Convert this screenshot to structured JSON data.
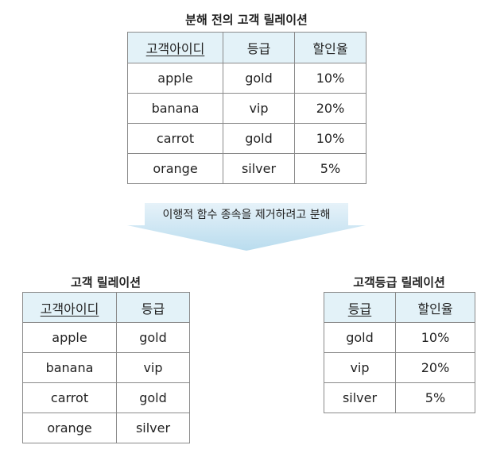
{
  "top": {
    "title": "분해 전의 고객 릴레이션",
    "headers": [
      "고객아이디",
      "등급",
      "할인율"
    ],
    "rows": [
      [
        "apple",
        "gold",
        "10%"
      ],
      [
        "banana",
        "vip",
        "20%"
      ],
      [
        "carrot",
        "gold",
        "10%"
      ],
      [
        "orange",
        "silver",
        "5%"
      ]
    ]
  },
  "arrow": {
    "label": "이행적 함수 종속을 제거하려고 분해"
  },
  "left": {
    "title": "고객 릴레이션",
    "headers": [
      "고객아이디",
      "등급"
    ],
    "rows": [
      [
        "apple",
        "gold"
      ],
      [
        "banana",
        "vip"
      ],
      [
        "carrot",
        "gold"
      ],
      [
        "orange",
        "silver"
      ]
    ]
  },
  "right": {
    "title": "고객등급 릴레이션",
    "headers": [
      "등급",
      "할인율"
    ],
    "rows": [
      [
        "gold",
        "10%"
      ],
      [
        "vip",
        "20%"
      ],
      [
        "silver",
        "5%"
      ]
    ]
  },
  "colors": {
    "header_bg": "#e3f2f8",
    "arrow_fill": "#cfe6f2",
    "border": "#8a8a8a"
  }
}
